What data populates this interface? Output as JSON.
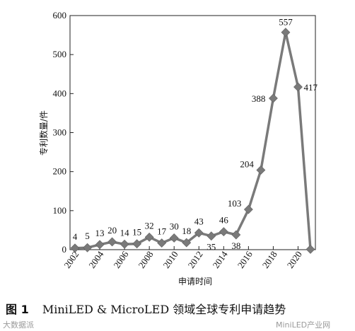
{
  "chart_data": {
    "type": "line",
    "xlabel": "申请时间",
    "ylabel": "专利数量/件",
    "ylim": [
      0,
      600
    ],
    "yticks": [
      0,
      100,
      200,
      300,
      400,
      500,
      600
    ],
    "xticks": [
      "2002",
      "2004",
      "2006",
      "2008",
      "2010",
      "2012",
      "2014",
      "2016",
      "2018",
      "2020"
    ],
    "x": [
      2002,
      2003,
      2004,
      2005,
      2006,
      2007,
      2008,
      2009,
      2010,
      2011,
      2012,
      2013,
      2014,
      2015,
      2016,
      2017,
      2018,
      2019,
      2020,
      2021
    ],
    "values": [
      4,
      5,
      13,
      20,
      14,
      15,
      32,
      17,
      30,
      18,
      43,
      35,
      46,
      38,
      103,
      204,
      388,
      557,
      417,
      1
    ],
    "data_labels": [
      "4",
      "5",
      "13",
      "20",
      "14",
      "15",
      "32",
      "17",
      "30",
      "18",
      "43",
      "35",
      "46",
      "38",
      "103",
      "204",
      "388",
      "557",
      "417",
      ""
    ],
    "grid": false,
    "line_color": "#7a7a7a",
    "marker": "diamond"
  },
  "caption": {
    "figure": "图 1",
    "text": "MiniLED & MicroLED 领域全球专利申请趋势"
  },
  "watermarks": {
    "left": "大数据派",
    "right": "MiniLED产业网"
  }
}
